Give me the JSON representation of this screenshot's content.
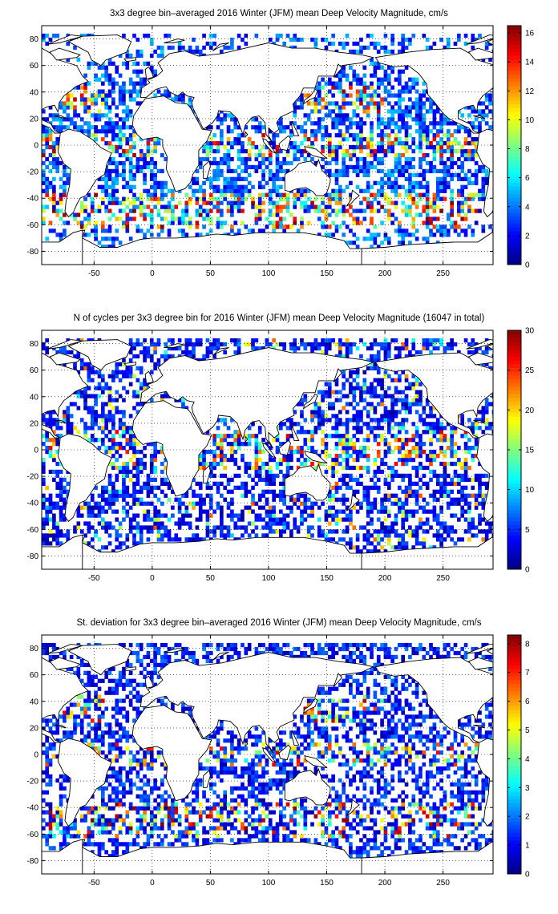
{
  "chart_data": [
    {
      "type": "heatmap",
      "title": "3x3 degree bin–averaged 2016 Winter (JFM) mean Deep Velocity Magnitude, cm/s",
      "xlabel": "",
      "ylabel": "",
      "xlim": [
        -95,
        293
      ],
      "ylim": [
        -90,
        90
      ],
      "xticks": [
        -50,
        0,
        50,
        100,
        150,
        200,
        250
      ],
      "yticks": [
        80,
        60,
        40,
        20,
        0,
        -20,
        -40,
        -60,
        -80
      ],
      "grid": true,
      "colorbar": {
        "range": [
          0,
          16.5
        ],
        "ticks": [
          0,
          2,
          4,
          6,
          8,
          10,
          12,
          14,
          16
        ]
      },
      "field": "mean"
    },
    {
      "type": "heatmap",
      "title": "N of cycles per 3x3 degree bin for 2016 Winter (JFM) mean Deep Velocity Magnitude (16047 in total)",
      "xlabel": "",
      "ylabel": "",
      "xlim": [
        -95,
        293
      ],
      "ylim": [
        -90,
        90
      ],
      "xticks": [
        -50,
        0,
        50,
        100,
        150,
        200,
        250
      ],
      "yticks": [
        80,
        60,
        40,
        20,
        0,
        -20,
        -40,
        -60,
        -80
      ],
      "grid": true,
      "colorbar": {
        "range": [
          0,
          30
        ],
        "ticks": [
          0,
          5,
          10,
          15,
          20,
          25,
          30
        ]
      },
      "total_cycles": 16047,
      "field": "count"
    },
    {
      "type": "heatmap",
      "title": "St. deviation for 3x3 degree bin–averaged 2016 Winter (JFM) mean Deep Velocity Magnitude, cm/s",
      "xlabel": "",
      "ylabel": "",
      "xlim": [
        -95,
        293
      ],
      "ylim": [
        -90,
        90
      ],
      "xticks": [
        -50,
        0,
        50,
        100,
        150,
        200,
        250
      ],
      "yticks": [
        80,
        60,
        40,
        20,
        0,
        -20,
        -40,
        -60,
        -80
      ],
      "grid": true,
      "colorbar": {
        "range": [
          0,
          8.3
        ],
        "ticks": [
          0,
          1,
          2,
          3,
          4,
          5,
          6,
          7,
          8
        ]
      },
      "field": "std"
    }
  ],
  "colormap": "jet"
}
